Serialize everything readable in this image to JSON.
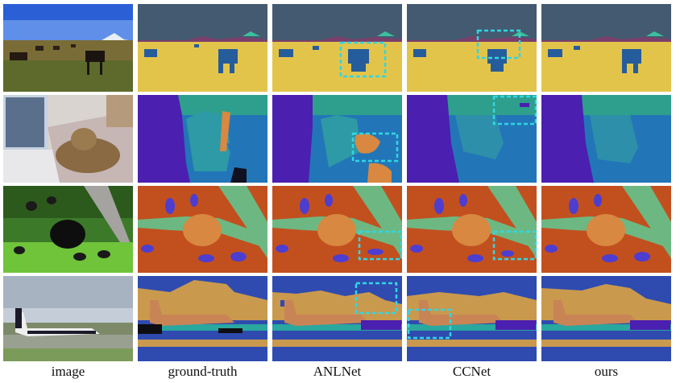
{
  "columns": [
    "image",
    "ground-truth",
    "ANLNet",
    "CCNet",
    "ours"
  ],
  "rows": [
    "cows-on-grass",
    "cat-on-bed",
    "bear-and-birds",
    "airplane-on-runway"
  ],
  "colors": {
    "sky": "#445a70",
    "field": "#e3c44a",
    "mountain": "#7b3f6b",
    "cow": "#255c9c",
    "highlight": "#31d6e3",
    "wall": "#2d9f8c",
    "violet": "#4b1fb0",
    "blanket": "#2276b8",
    "cat": "#2d9aa6",
    "orange": "#d88840",
    "red": "#c2501f",
    "tree": "#6db882",
    "bird": "#4d3ecf",
    "runway": "#2f4bb0",
    "airplane": "#c98455",
    "sky2": "#c9994e"
  }
}
